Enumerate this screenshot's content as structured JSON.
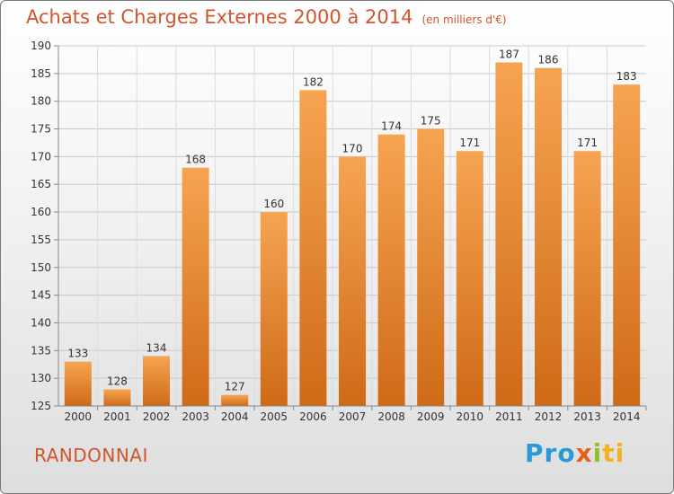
{
  "header": {
    "title": "Achats et Charges Externes 2000 à 2014",
    "subtitle": "(en milliers d'€)"
  },
  "footer": {
    "place_name": "RANDONNAI",
    "brand_logo": "Proxiti"
  },
  "colors": {
    "title": "#d2542a",
    "bar_top": "#f6a452",
    "bar_bottom": "#cf6a17"
  },
  "chart_data": {
    "type": "bar",
    "title": "Achats et Charges Externes 2000 à 2014",
    "subtitle": "(en milliers d'€)",
    "categories": [
      "2000",
      "2001",
      "2002",
      "2003",
      "2004",
      "2005",
      "2006",
      "2007",
      "2008",
      "2009",
      "2010",
      "2011",
      "2012",
      "2013",
      "2014"
    ],
    "values": [
      133,
      128,
      134,
      168,
      127,
      160,
      182,
      170,
      174,
      175,
      171,
      187,
      186,
      171,
      183
    ],
    "ylim": [
      125,
      190
    ],
    "yticks": [
      125,
      130,
      135,
      140,
      145,
      150,
      155,
      160,
      165,
      170,
      175,
      180,
      185,
      190
    ],
    "grid": true,
    "data_labels": true
  }
}
